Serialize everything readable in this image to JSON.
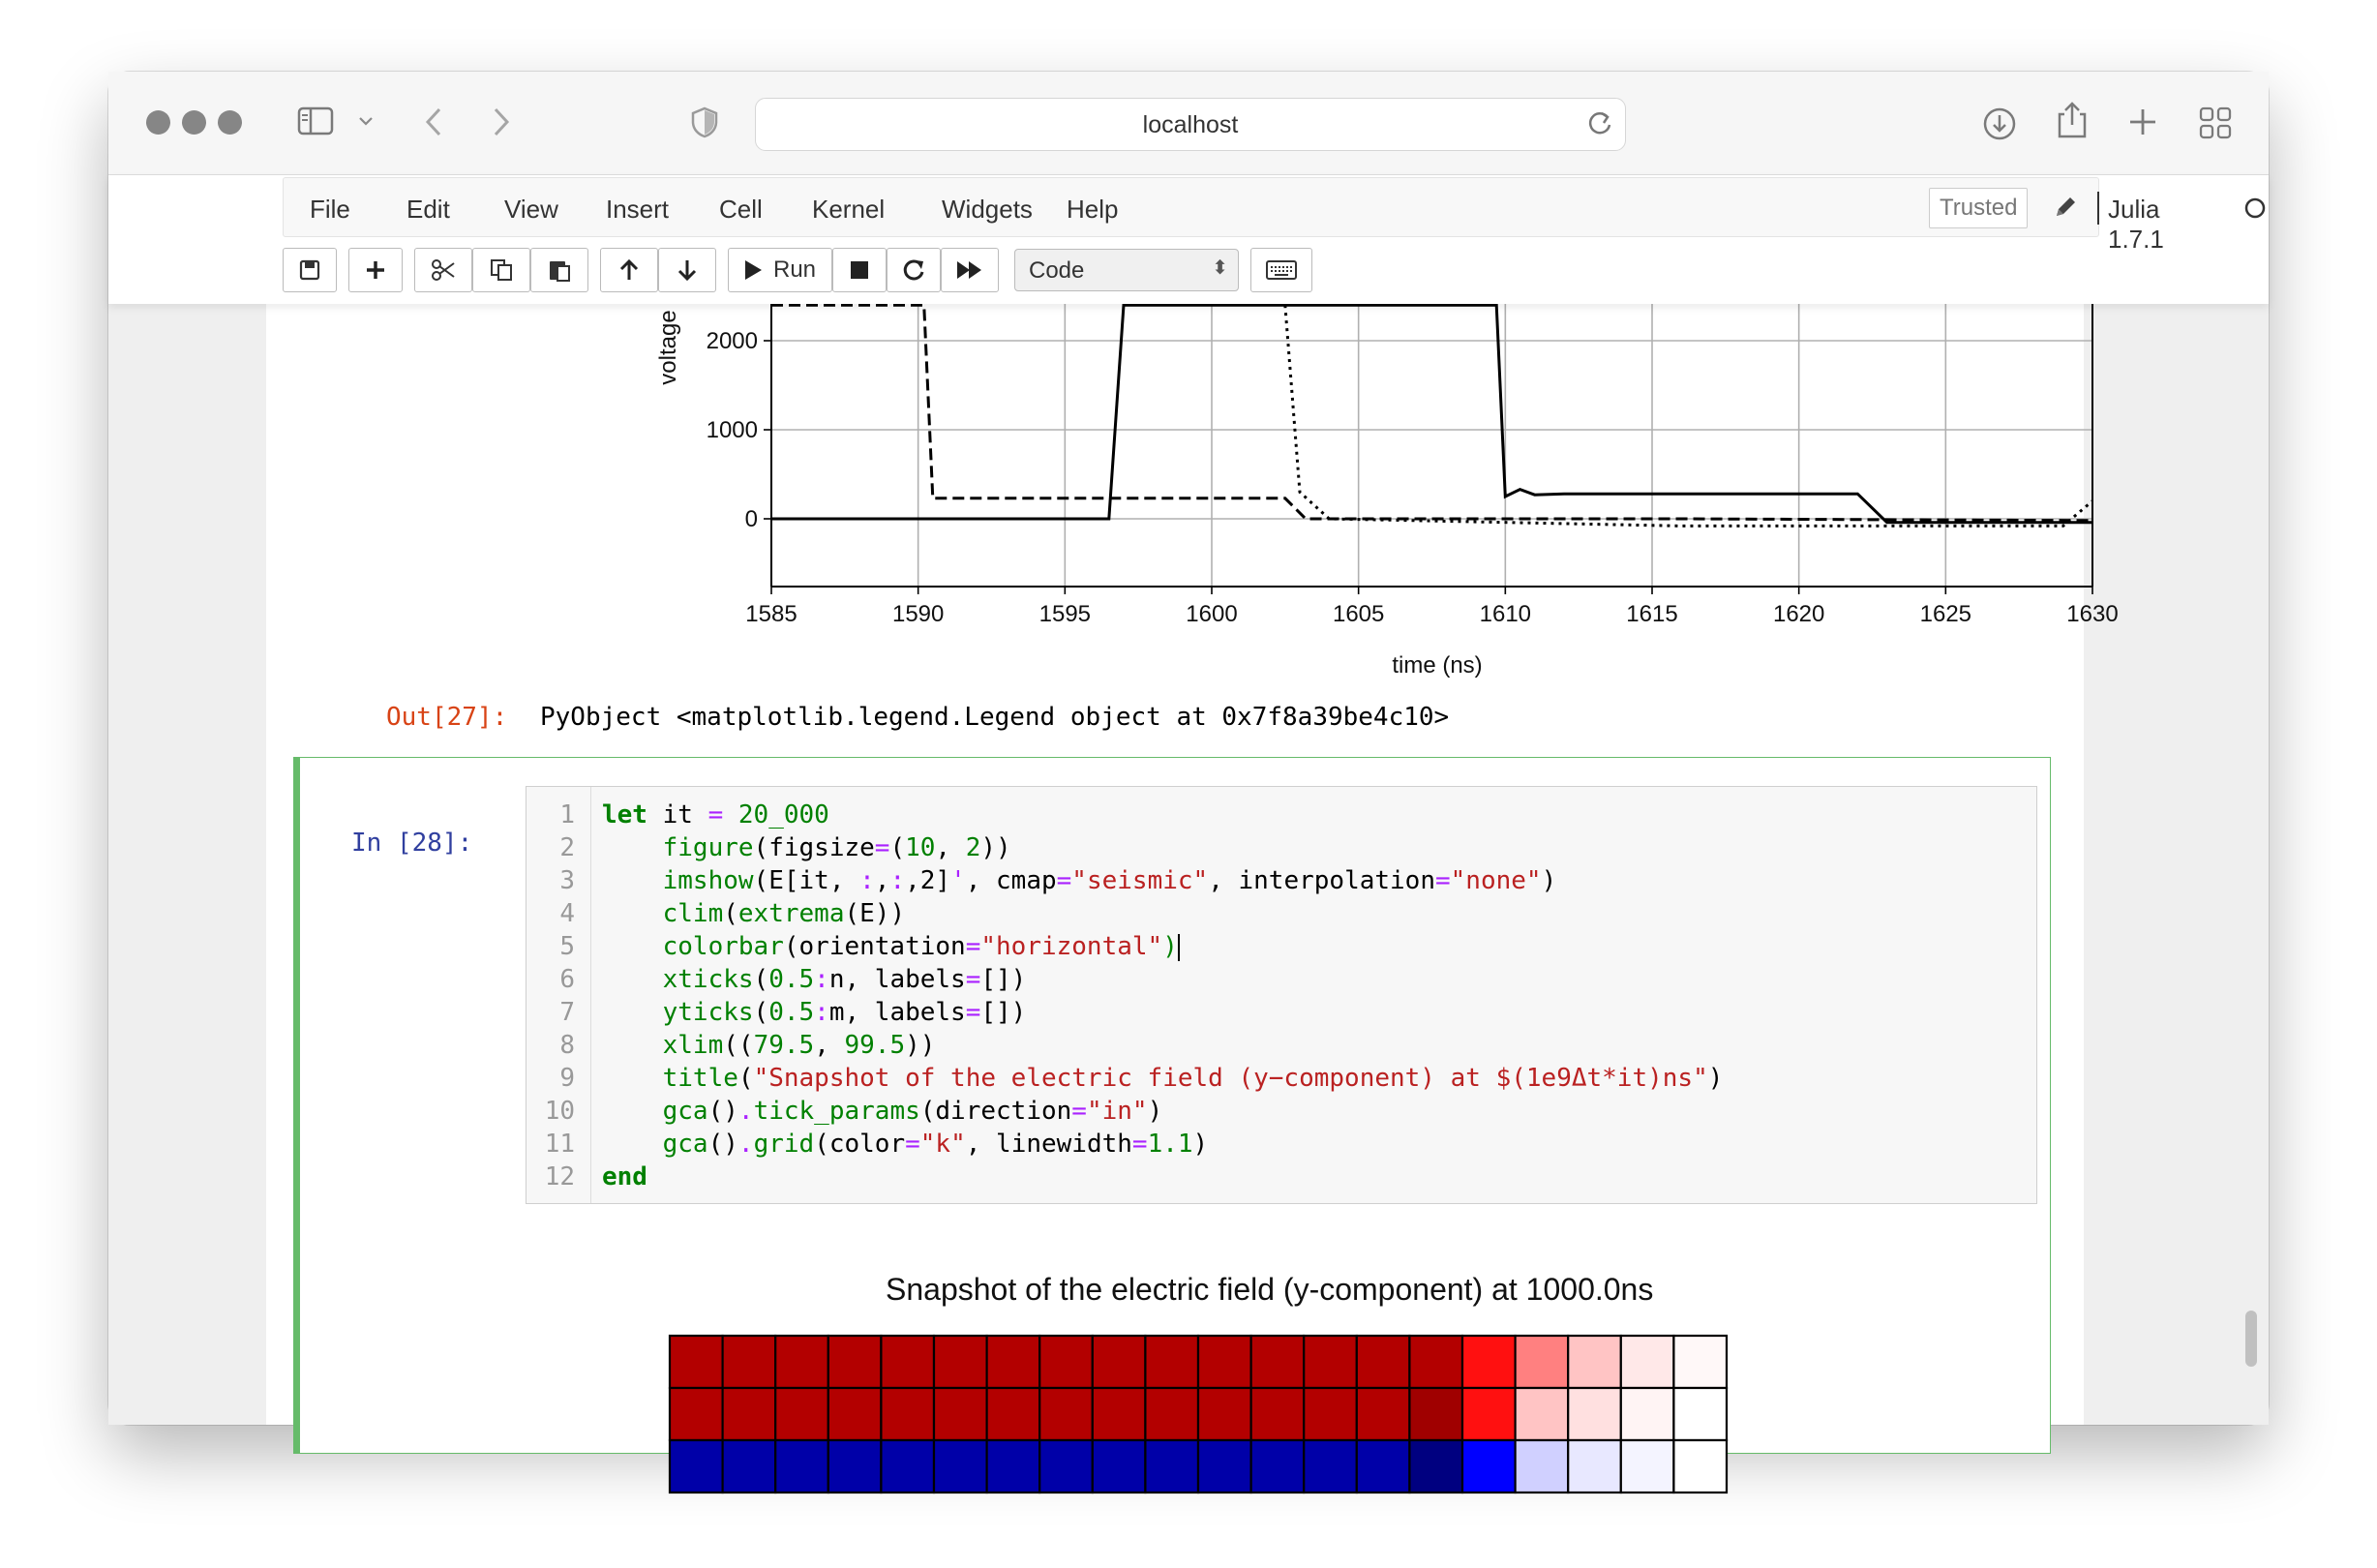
{
  "browser": {
    "url": "localhost"
  },
  "menu": {
    "items": [
      "File",
      "Edit",
      "View",
      "Insert",
      "Cell",
      "Kernel",
      "Widgets",
      "Help"
    ],
    "trusted": "Trusted",
    "kernel": "Julia 1.7.1"
  },
  "toolbar": {
    "run_label": "Run",
    "cell_type": "Code"
  },
  "plot": {
    "ylabel": "voltage",
    "xlabel": "time (ns)",
    "yticks": [
      "2000",
      "1000",
      "0"
    ],
    "xticks": [
      "1585",
      "1590",
      "1595",
      "1600",
      "1605",
      "1610",
      "1615",
      "1620",
      "1625",
      "1630"
    ]
  },
  "output": {
    "prompt": "Out[27]:",
    "text": "PyObject <matplotlib.legend.Legend object at 0x7f8a39be4c10>"
  },
  "cell": {
    "prompt": "In [28]:",
    "line_numbers": [
      "1",
      "2",
      "3",
      "4",
      "5",
      "6",
      "7",
      "8",
      "9",
      "10",
      "11",
      "12"
    ]
  },
  "figure": {
    "title": "Snapshot of the electric field (y-component) at 1000.0ns"
  },
  "chart_data": {
    "type": "line",
    "xlabel": "time (ns)",
    "ylabel": "voltage",
    "xlim": [
      1585,
      1630
    ],
    "ylim": [
      -800,
      2400
    ],
    "grid": true,
    "series": [
      {
        "style": "solid",
        "x": [
          1585,
          1596.5,
          1597,
          1609.7,
          1610,
          1610.5,
          1611,
          1612,
          1622,
          1623,
          1630
        ],
        "y": [
          0,
          0,
          2400,
          2400,
          250,
          330,
          270,
          280,
          280,
          -40,
          -40
        ]
      },
      {
        "style": "dashed",
        "x": [
          1585,
          1590.2,
          1590.5,
          1602.5,
          1603.2,
          1616,
          1630
        ],
        "y": [
          2400,
          2400,
          230,
          230,
          0,
          0,
          -20
        ]
      },
      {
        "style": "dotted",
        "x": [
          1585,
          1602.5,
          1603,
          1604,
          1616,
          1629,
          1630
        ],
        "y": [
          null,
          2400,
          300,
          0,
          -80,
          -80,
          200
        ]
      }
    ]
  }
}
